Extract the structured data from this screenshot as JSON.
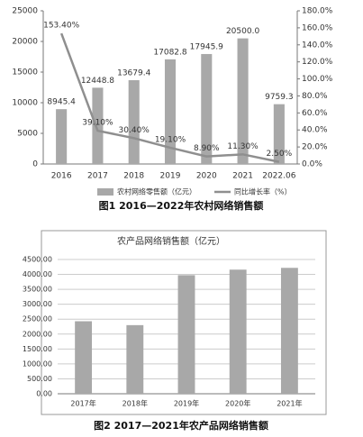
{
  "chart_data": [
    {
      "type": "bar",
      "caption": "图1 2016—2022年农村网络销售额",
      "categories": [
        "2016",
        "2017",
        "2018",
        "2019",
        "2020",
        "2021",
        "2022.06"
      ],
      "series": [
        {
          "name": "农村网络零售额（亿元）",
          "type": "bar",
          "color": "#a8a8a8",
          "values": [
            8945.4,
            12448.8,
            13679.4,
            17082.8,
            17945.9,
            20500.0,
            9759.3
          ],
          "value_labels": [
            "8945.4",
            "12448.8",
            "13679.4",
            "17082.8",
            "17945.9",
            "20500.0",
            "9759.3"
          ]
        },
        {
          "name": "同比增长率（%）",
          "type": "line",
          "axis": "y2",
          "color": "#8f8f8f",
          "values": [
            153.4,
            39.1,
            30.4,
            19.1,
            8.9,
            11.3,
            2.5
          ],
          "value_labels": [
            "153.40%",
            "39.10%",
            "30.40%",
            "19.10%",
            "8.90%",
            "11.30%",
            "2.50%"
          ]
        }
      ],
      "ylim": [
        0,
        25000
      ],
      "yticks": [
        0,
        5000,
        10000,
        15000,
        20000,
        25000
      ],
      "y2lim": [
        0,
        180
      ],
      "y2ticks": [
        {
          "value": 0,
          "label": "0.0%"
        },
        {
          "value": 20,
          "label": "20.0%"
        },
        {
          "value": 40,
          "label": "40.0%"
        },
        {
          "value": 60,
          "label": "60.0%"
        },
        {
          "value": 80,
          "label": "80.0%"
        },
        {
          "value": 100,
          "label": "100.0%"
        },
        {
          "value": 120,
          "label": "120.0%"
        },
        {
          "value": 140,
          "label": "140.0%"
        },
        {
          "value": 160,
          "label": "160.0%"
        },
        {
          "value": 180,
          "label": "180.0%"
        }
      ],
      "grid": false,
      "legend": "bottom"
    },
    {
      "type": "bar",
      "title": "农产品网络销售额（亿元）",
      "caption": "图2 2017—2021年农产品网络销售额",
      "categories": [
        "2017年",
        "2018年",
        "2019年",
        "2020年",
        "2021年"
      ],
      "series": [
        {
          "name": null,
          "type": "bar",
          "color": "#a8a8a8",
          "values": [
            2430,
            2300,
            3975,
            4160,
            4220
          ]
        }
      ],
      "ylim": [
        0,
        4500
      ],
      "yticks": [
        {
          "value": 0,
          "label": "0.00"
        },
        {
          "value": 500,
          "label": "500.00"
        },
        {
          "value": 1000,
          "label": "1000.00"
        },
        {
          "value": 1500,
          "label": "1500.00"
        },
        {
          "value": 2000,
          "label": "2000.00"
        },
        {
          "value": 2500,
          "label": "2500.00"
        },
        {
          "value": 3000,
          "label": "3000.00"
        },
        {
          "value": 3500,
          "label": "3500.00"
        },
        {
          "value": 4000,
          "label": "4000.00"
        },
        {
          "value": 4500,
          "label": "4500.00"
        }
      ],
      "grid": true
    }
  ]
}
